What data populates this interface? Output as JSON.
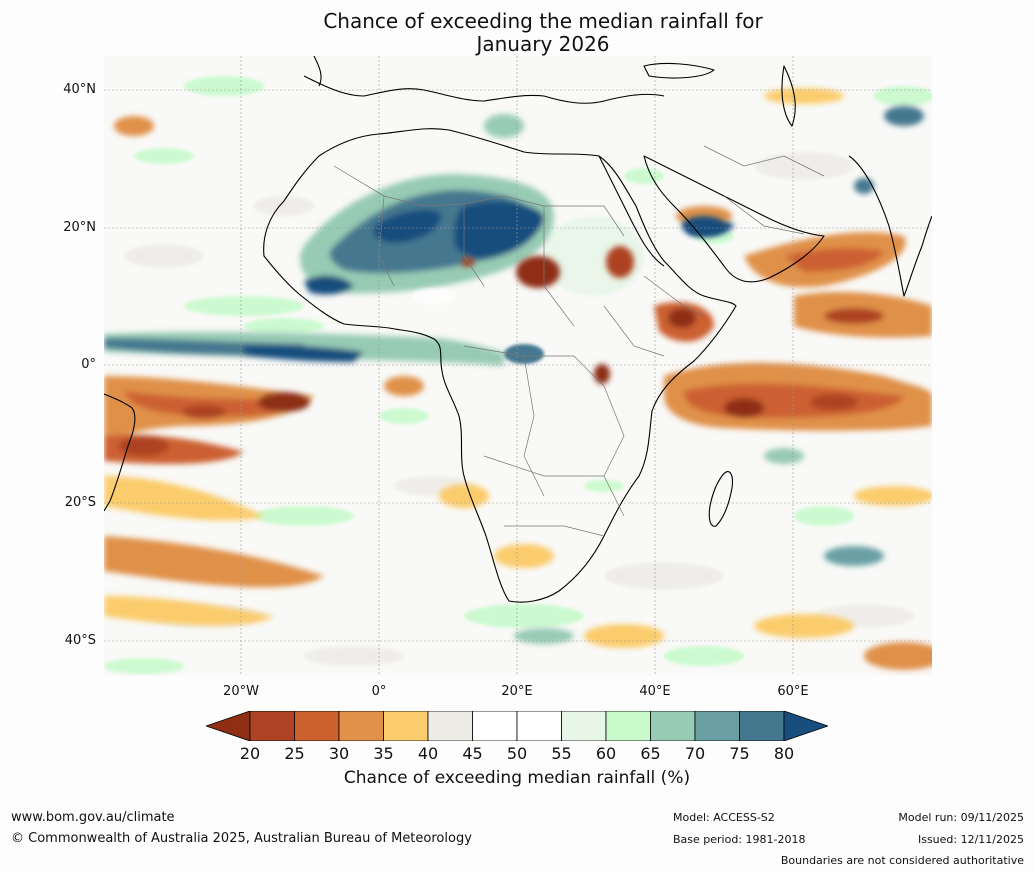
{
  "title_line1": "Chance of exceeding the median rainfall for",
  "title_line2": "January 2026",
  "lat_labels": [
    "40°N",
    "20°N",
    "0°",
    "20°S",
    "40°S"
  ],
  "lon_labels": [
    "20°W",
    "0°",
    "20°E",
    "40°E",
    "60°E"
  ],
  "colorbar": {
    "ticks": [
      "20",
      "25",
      "30",
      "35",
      "40",
      "45",
      "50",
      "55",
      "60",
      "65",
      "70",
      "75",
      "80"
    ],
    "colors": [
      "#8e2e12",
      "#ad4322",
      "#cc6130",
      "#e0914a",
      "#fbcc6c",
      "#eeece7",
      "#ffffff",
      "#ffffff",
      "#e8f6e8",
      "#c8facc",
      "#97cbb4",
      "#6aa0a4",
      "#44788f",
      "#174e7d"
    ],
    "label": "Chance of exceeding median rainfall (%)"
  },
  "footer": {
    "url": "www.bom.gov.au/climate",
    "copyright": "© Commonwealth of Australia 2025, Australian Bureau of Meteorology",
    "model": "Model: ACCESS-S2",
    "base_period": "Base period: 1981-2018",
    "model_run": "Model run: 09/11/2025",
    "issued": "Issued: 12/11/2025",
    "disclaimer": "Boundaries are not considered authoritative"
  }
}
